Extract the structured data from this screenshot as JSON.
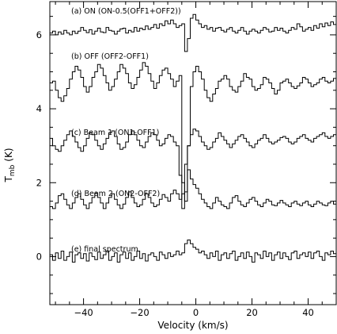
{
  "chart_data": {
    "type": "line",
    "step": true,
    "xlabel": "Velocity (km/s)",
    "ylabel": "T",
    "ylabel_sub": "mb",
    "ylabel_unit": "(K)",
    "xlim": [
      -52,
      50
    ],
    "ylim": [
      -1.3,
      6.9
    ],
    "xticks": [
      -40,
      -20,
      0,
      20,
      40
    ],
    "yticks": [
      0,
      2,
      4,
      6
    ],
    "x_start": -52,
    "x_step": 1.0,
    "series": [
      {
        "name": "(a) ON (ON-0.5(OFF1+OFF2))",
        "values": [
          6.05,
          6.1,
          6.0,
          6.08,
          6.02,
          6.12,
          6.05,
          6.0,
          6.1,
          6.04,
          6.1,
          6.2,
          6.12,
          6.06,
          6.14,
          6.02,
          6.1,
          6.18,
          6.08,
          6.06,
          6.2,
          6.12,
          6.1,
          6.02,
          6.1,
          6.16,
          6.18,
          6.05,
          6.12,
          6.08,
          6.2,
          6.1,
          6.18,
          6.14,
          6.24,
          6.15,
          6.2,
          6.28,
          6.18,
          6.3,
          6.25,
          6.38,
          6.3,
          6.4,
          6.3,
          6.2,
          6.25,
          6.3,
          5.55,
          5.9,
          6.45,
          6.55,
          6.4,
          6.3,
          6.2,
          6.25,
          6.15,
          6.2,
          6.1,
          6.18,
          6.2,
          6.12,
          6.08,
          6.15,
          6.2,
          6.1,
          6.05,
          6.12,
          6.2,
          6.1,
          6.02,
          6.1,
          6.15,
          6.1,
          6.05,
          6.12,
          6.2,
          6.15,
          6.08,
          6.1,
          6.2,
          6.12,
          6.18,
          6.1,
          6.05,
          6.12,
          6.2,
          6.15,
          6.3,
          6.22,
          6.1,
          6.15,
          6.2,
          6.12,
          6.25,
          6.18,
          6.3,
          6.22,
          6.32,
          6.25,
          6.35,
          6.28
        ]
      },
      {
        "name": "(b) OFF (OFF2-OFF1)",
        "values": [
          4.7,
          4.75,
          4.5,
          4.3,
          4.2,
          4.35,
          4.55,
          4.8,
          5.0,
          5.15,
          5.05,
          4.85,
          4.6,
          4.45,
          4.6,
          4.85,
          5.0,
          5.2,
          5.1,
          4.9,
          4.7,
          4.5,
          4.6,
          4.8,
          5.0,
          5.2,
          5.1,
          4.95,
          4.7,
          4.55,
          4.65,
          4.85,
          5.05,
          5.25,
          5.15,
          4.95,
          4.75,
          4.55,
          4.7,
          4.9,
          5.05,
          5.1,
          4.95,
          4.8,
          4.6,
          4.75,
          4.9,
          2.0,
          1.5,
          3.0,
          4.6,
          5.0,
          5.15,
          5.0,
          4.8,
          4.5,
          4.3,
          4.2,
          4.4,
          4.55,
          4.75,
          4.8,
          4.9,
          4.8,
          4.6,
          4.5,
          4.45,
          4.6,
          4.75,
          4.95,
          4.85,
          4.8,
          4.6,
          4.5,
          4.55,
          4.65,
          4.85,
          4.8,
          4.7,
          4.55,
          4.4,
          4.5,
          4.7,
          4.75,
          4.8,
          4.7,
          4.6,
          4.55,
          4.62,
          4.7,
          4.85,
          4.8,
          4.7,
          4.6,
          4.65,
          4.7,
          4.8,
          4.85,
          4.75,
          4.7,
          4.75,
          4.82
        ]
      },
      {
        "name": "(c) Beam 1 (ON1-OFF1)",
        "values": [
          3.2,
          3.0,
          2.9,
          2.85,
          3.0,
          3.15,
          3.3,
          3.4,
          3.25,
          3.1,
          2.95,
          2.85,
          3.0,
          3.2,
          3.35,
          3.3,
          3.15,
          3.0,
          2.9,
          3.05,
          3.2,
          3.35,
          3.4,
          3.25,
          3.05,
          2.9,
          2.95,
          3.1,
          3.3,
          3.4,
          3.3,
          3.15,
          3.0,
          2.95,
          3.1,
          3.25,
          3.35,
          3.3,
          3.15,
          3.0,
          3.05,
          3.2,
          3.3,
          3.25,
          3.1,
          3.0,
          2.2,
          1.3,
          2.5,
          3.0,
          3.3,
          3.45,
          3.4,
          3.25,
          3.1,
          3.0,
          2.9,
          2.95,
          3.1,
          3.2,
          3.35,
          3.25,
          3.15,
          3.05,
          2.95,
          3.05,
          3.15,
          3.25,
          3.3,
          3.2,
          3.1,
          3.0,
          2.95,
          3.05,
          3.15,
          3.2,
          3.3,
          3.2,
          3.1,
          3.05,
          3.1,
          3.15,
          3.22,
          3.25,
          3.2,
          3.1,
          3.05,
          3.1,
          3.2,
          3.25,
          3.3,
          3.2,
          3.15,
          3.1,
          3.2,
          3.25,
          3.3,
          3.35,
          3.25,
          3.2,
          3.25,
          3.3
        ]
      },
      {
        "name": "(d) Beam 2 (ON2-OFF2)",
        "values": [
          1.35,
          1.3,
          1.45,
          1.65,
          1.7,
          1.55,
          1.4,
          1.3,
          1.45,
          1.6,
          1.7,
          1.55,
          1.4,
          1.3,
          1.45,
          1.6,
          1.72,
          1.6,
          1.45,
          1.3,
          1.45,
          1.6,
          1.7,
          1.55,
          1.4,
          1.3,
          1.42,
          1.6,
          1.75,
          1.6,
          1.45,
          1.35,
          1.4,
          1.55,
          1.7,
          1.6,
          1.45,
          1.35,
          1.4,
          1.55,
          1.68,
          1.6,
          1.5,
          1.7,
          1.8,
          1.7,
          1.55,
          1.7,
          1.75,
          2.35,
          2.1,
          1.95,
          1.85,
          1.7,
          1.55,
          1.45,
          1.35,
          1.3,
          1.45,
          1.6,
          1.5,
          1.4,
          1.35,
          1.3,
          1.45,
          1.6,
          1.65,
          1.5,
          1.4,
          1.35,
          1.45,
          1.55,
          1.6,
          1.5,
          1.4,
          1.35,
          1.45,
          1.55,
          1.5,
          1.4,
          1.38,
          1.45,
          1.52,
          1.45,
          1.4,
          1.35,
          1.45,
          1.5,
          1.42,
          1.38,
          1.45,
          1.5,
          1.4,
          1.35,
          1.42,
          1.5,
          1.45,
          1.4,
          1.38,
          1.45,
          1.5,
          1.42
        ]
      },
      {
        "name": "(e) final spectrum",
        "values": [
          0.05,
          -0.1,
          0.1,
          -0.05,
          0.15,
          -0.1,
          0.0,
          0.12,
          -0.15,
          0.05,
          0.1,
          -0.05,
          0.08,
          -0.12,
          0.1,
          0.0,
          -0.08,
          0.12,
          -0.05,
          0.05,
          0.15,
          -0.1,
          0.0,
          0.1,
          -0.15,
          0.05,
          0.12,
          -0.05,
          0.1,
          -0.1,
          0.0,
          0.15,
          -0.05,
          0.08,
          -0.12,
          0.05,
          0.1,
          0.0,
          -0.1,
          0.12,
          0.05,
          -0.05,
          0.1,
          0.0,
          0.05,
          0.15,
          0.05,
          0.1,
          0.35,
          0.45,
          0.35,
          0.25,
          0.2,
          0.1,
          0.15,
          0.05,
          -0.05,
          0.1,
          0.0,
          0.15,
          -0.1,
          0.05,
          0.1,
          -0.05,
          0.08,
          0.15,
          -0.1,
          0.0,
          0.1,
          -0.05,
          0.12,
          0.0,
          -0.15,
          0.1,
          0.05,
          -0.05,
          0.15,
          0.0,
          0.1,
          -0.1,
          0.05,
          0.12,
          -0.05,
          0.1,
          0.0,
          -0.08,
          0.1,
          0.15,
          -0.05,
          0.05,
          0.1,
          0.0,
          0.12,
          -0.05,
          0.1,
          0.15,
          0.0,
          -0.1,
          0.1,
          0.05,
          0.15,
          0.08
        ]
      }
    ]
  }
}
